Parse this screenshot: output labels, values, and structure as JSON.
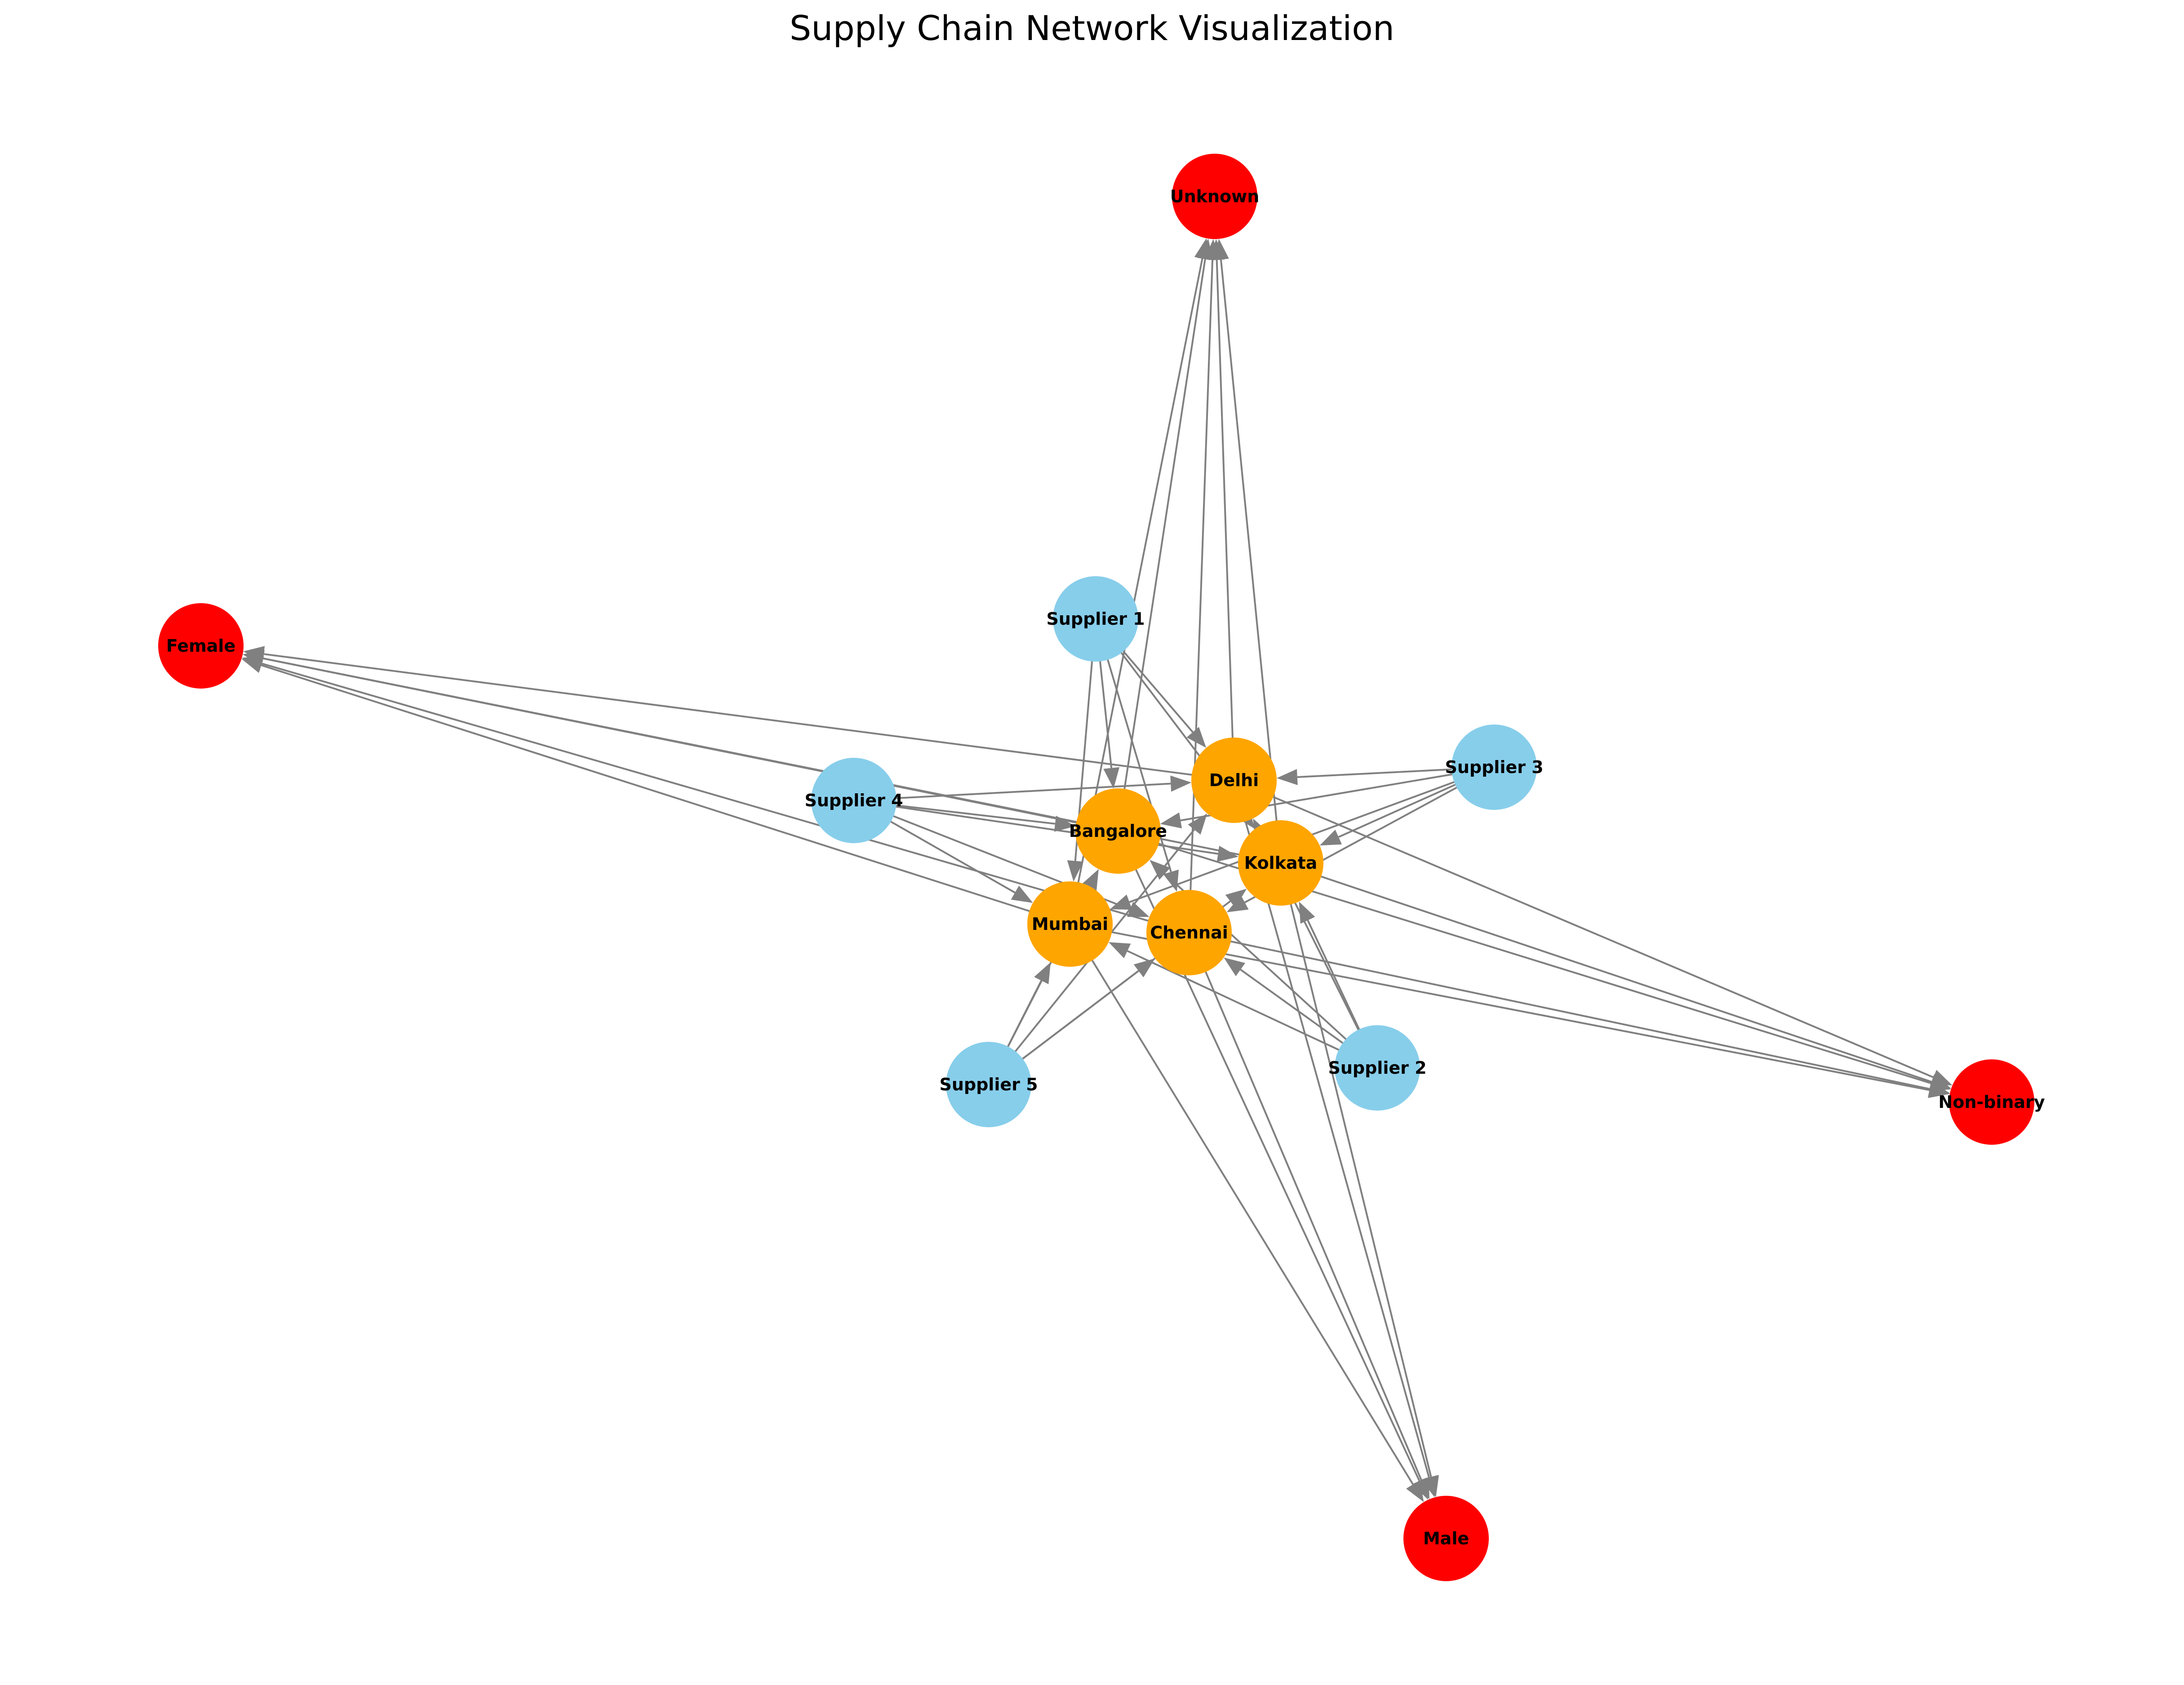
{
  "title": "Supply Chain Network Visualization",
  "colors": {
    "supplier": "#87CEEB",
    "city": "#FFA500",
    "demographic": "#FF0000",
    "edge": "#808080"
  },
  "nodes": [
    {
      "id": "supplier-1",
      "label": "Supplier 1",
      "group": "supplier"
    },
    {
      "id": "supplier-2",
      "label": "Supplier 2",
      "group": "supplier"
    },
    {
      "id": "supplier-3",
      "label": "Supplier 3",
      "group": "supplier"
    },
    {
      "id": "supplier-4",
      "label": "Supplier 4",
      "group": "supplier"
    },
    {
      "id": "supplier-5",
      "label": "Supplier 5",
      "group": "supplier"
    },
    {
      "id": "delhi",
      "label": "Delhi",
      "group": "city"
    },
    {
      "id": "bangalore",
      "label": "Bangalore",
      "group": "city"
    },
    {
      "id": "kolkata",
      "label": "Kolkata",
      "group": "city"
    },
    {
      "id": "mumbai",
      "label": "Mumbai",
      "group": "city"
    },
    {
      "id": "chennai",
      "label": "Chennai",
      "group": "city"
    },
    {
      "id": "unknown",
      "label": "Unknown",
      "group": "demographic"
    },
    {
      "id": "female",
      "label": "Female",
      "group": "demographic"
    },
    {
      "id": "non-binary",
      "label": "Non-binary",
      "group": "demographic"
    },
    {
      "id": "male",
      "label": "Male",
      "group": "demographic"
    }
  ],
  "edges": [
    [
      "supplier-1",
      "delhi"
    ],
    [
      "supplier-1",
      "bangalore"
    ],
    [
      "supplier-1",
      "kolkata"
    ],
    [
      "supplier-1",
      "mumbai"
    ],
    [
      "supplier-1",
      "chennai"
    ],
    [
      "supplier-2",
      "delhi"
    ],
    [
      "supplier-2",
      "bangalore"
    ],
    [
      "supplier-2",
      "kolkata"
    ],
    [
      "supplier-2",
      "mumbai"
    ],
    [
      "supplier-2",
      "chennai"
    ],
    [
      "supplier-3",
      "delhi"
    ],
    [
      "supplier-3",
      "bangalore"
    ],
    [
      "supplier-3",
      "kolkata"
    ],
    [
      "supplier-3",
      "mumbai"
    ],
    [
      "supplier-3",
      "chennai"
    ],
    [
      "supplier-4",
      "delhi"
    ],
    [
      "supplier-4",
      "bangalore"
    ],
    [
      "supplier-4",
      "kolkata"
    ],
    [
      "supplier-4",
      "mumbai"
    ],
    [
      "supplier-4",
      "chennai"
    ],
    [
      "supplier-5",
      "delhi"
    ],
    [
      "supplier-5",
      "bangalore"
    ],
    [
      "supplier-5",
      "kolkata"
    ],
    [
      "supplier-5",
      "mumbai"
    ],
    [
      "supplier-5",
      "chennai"
    ],
    [
      "delhi",
      "unknown"
    ],
    [
      "delhi",
      "female"
    ],
    [
      "delhi",
      "non-binary"
    ],
    [
      "delhi",
      "male"
    ],
    [
      "bangalore",
      "unknown"
    ],
    [
      "bangalore",
      "female"
    ],
    [
      "bangalore",
      "non-binary"
    ],
    [
      "bangalore",
      "male"
    ],
    [
      "kolkata",
      "unknown"
    ],
    [
      "kolkata",
      "female"
    ],
    [
      "kolkata",
      "non-binary"
    ],
    [
      "kolkata",
      "male"
    ],
    [
      "mumbai",
      "unknown"
    ],
    [
      "mumbai",
      "female"
    ],
    [
      "mumbai",
      "non-binary"
    ],
    [
      "mumbai",
      "male"
    ],
    [
      "chennai",
      "unknown"
    ],
    [
      "chennai",
      "female"
    ],
    [
      "chennai",
      "non-binary"
    ],
    [
      "chennai",
      "male"
    ]
  ]
}
